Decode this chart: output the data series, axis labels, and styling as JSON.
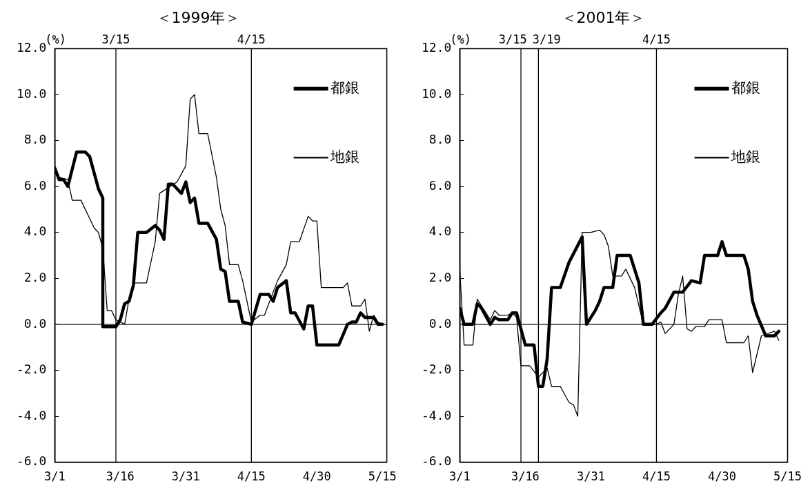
{
  "chart_data": [
    {
      "type": "line",
      "title": "＜1999年＞",
      "ylabel": "(%)",
      "legend": "top right",
      "grid": false,
      "xlim": [
        "--03-01",
        "--05-16"
      ],
      "xticks": [
        {
          "value": "--03-01",
          "label": "3/1"
        },
        {
          "value": "--03-16",
          "label": "3/16"
        },
        {
          "value": "--03-31",
          "label": "3/31"
        },
        {
          "value": "--04-15",
          "label": "4/15"
        },
        {
          "value": "--04-30",
          "label": "4/30"
        },
        {
          "value": "--05-15",
          "label": "5/15"
        }
      ],
      "ylim": [
        -6,
        12
      ],
      "yticks": [
        {
          "value": -6,
          "label": "-6.0"
        },
        {
          "value": -4,
          "label": "-4.0"
        },
        {
          "value": -2,
          "label": "-2.0"
        },
        {
          "value": 0,
          "label": "0.0"
        },
        {
          "value": 2,
          "label": "2.0"
        },
        {
          "value": 4,
          "label": "4.0"
        },
        {
          "value": 6,
          "label": "6.0"
        },
        {
          "value": 8,
          "label": "8.0"
        },
        {
          "value": 10,
          "label": "10.0"
        },
        {
          "value": 12,
          "label": "12.0"
        }
      ],
      "ref_lines": [
        {
          "axis": "x",
          "value": "--03-15",
          "label": "3/15"
        },
        {
          "axis": "x",
          "value": "--04-15",
          "label": "4/15"
        },
        {
          "axis": "y",
          "value": 0,
          "label": null
        }
      ],
      "series": [
        {
          "name": "都銀",
          "color": "#000000",
          "x": [
            "--03-01",
            "--03-02",
            "--03-03",
            "--03-04",
            "--03-06",
            "--03-08",
            "--03-09",
            "--03-10",
            "--03-11",
            "--03-12",
            "--03-12",
            "--03-15",
            "--03-16",
            "--03-17",
            "--03-18",
            "--03-19",
            "--03-20",
            "--03-22",
            "--03-24",
            "--03-25",
            "--03-26",
            "--03-27",
            "--03-28",
            "--03-30",
            "--03-31",
            "--04-01",
            "--04-02",
            "--04-03",
            "--04-05",
            "--04-07",
            "--04-08",
            "--04-09",
            "--04-10",
            "--04-12",
            "--04-13",
            "--04-15",
            "--04-17",
            "--04-19",
            "--04-20",
            "--04-21",
            "--04-23",
            "--04-24",
            "--04-25",
            "--04-27",
            "--04-28",
            "--04-29",
            "--04-30",
            "--05-05",
            "--05-07",
            "--05-08",
            "--05-09",
            "--05-10",
            "--05-11",
            "--05-13",
            "--05-14",
            "--05-15"
          ],
          "values": [
            6.8,
            6.3,
            6.3,
            6.0,
            7.5,
            7.5,
            7.3,
            6.6,
            5.9,
            5.5,
            -0.1,
            -0.1,
            0.2,
            0.9,
            1.0,
            1.7,
            4.0,
            4.0,
            4.3,
            4.1,
            3.7,
            6.1,
            6.1,
            5.7,
            6.2,
            5.3,
            5.5,
            4.4,
            4.4,
            3.7,
            2.4,
            2.3,
            1.0,
            1.0,
            0.1,
            0.0,
            1.3,
            1.3,
            1.0,
            1.6,
            1.9,
            0.5,
            0.5,
            -0.2,
            0.8,
            0.8,
            -0.9,
            -0.9,
            0.0,
            0.1,
            0.1,
            0.5,
            0.3,
            0.3,
            0.0,
            0.0
          ]
        },
        {
          "name": "地銀",
          "color": "#000000",
          "x": [
            "--03-01",
            "--03-02",
            "--03-04",
            "--03-05",
            "--03-07",
            "--03-10",
            "--03-11",
            "--03-12",
            "--03-13",
            "--03-14",
            "--03-15",
            "--03-17",
            "--03-18",
            "--03-19",
            "--03-22",
            "--03-24",
            "--03-25",
            "--03-29",
            "--03-31",
            "--04-01",
            "--04-02",
            "--04-03",
            "--04-05",
            "--04-07",
            "--04-08",
            "--04-09",
            "--04-10",
            "--04-12",
            "--04-13",
            "--04-15",
            "--04-17",
            "--04-18",
            "--04-21",
            "--04-23",
            "--04-24",
            "--04-26",
            "--04-28",
            "--04-29",
            "--04-30",
            "--05-01",
            "--05-06",
            "--05-07",
            "--05-08",
            "--05-10",
            "--05-11",
            "--05-12",
            "--05-13",
            "--05-14",
            "--05-15"
          ],
          "values": [
            6.9,
            6.4,
            6.3,
            5.4,
            5.4,
            4.2,
            4.0,
            3.3,
            0.6,
            0.6,
            0.2,
            0.0,
            1.1,
            1.8,
            1.8,
            3.6,
            5.7,
            6.2,
            6.9,
            9.8,
            10.0,
            8.3,
            8.3,
            6.4,
            5.0,
            4.3,
            2.6,
            2.6,
            1.9,
            0.1,
            0.4,
            0.4,
            1.9,
            2.6,
            3.6,
            3.6,
            4.7,
            4.5,
            4.5,
            1.6,
            1.6,
            1.8,
            0.8,
            0.8,
            1.1,
            -0.3,
            0.4,
            0.1,
            0.0
          ]
        }
      ]
    },
    {
      "type": "line",
      "title": "＜2001年＞",
      "ylabel": "(%)",
      "legend": "top right",
      "grid": false,
      "xlim": [
        "--03-01",
        "--05-15"
      ],
      "xticks": [
        {
          "value": "--03-01",
          "label": "3/1"
        },
        {
          "value": "--03-16",
          "label": "3/16"
        },
        {
          "value": "--03-31",
          "label": "3/31"
        },
        {
          "value": "--04-15",
          "label": "4/15"
        },
        {
          "value": "--04-30",
          "label": "4/30"
        },
        {
          "value": "--05-15",
          "label": "5/15"
        }
      ],
      "ylim": [
        -6,
        12
      ],
      "yticks": [
        {
          "value": -6,
          "label": "-6.0"
        },
        {
          "value": -4,
          "label": "-4.0"
        },
        {
          "value": -2,
          "label": "-2.0"
        },
        {
          "value": 0,
          "label": "0.0"
        },
        {
          "value": 2,
          "label": "2.0"
        },
        {
          "value": 4,
          "label": "4.0"
        },
        {
          "value": 6,
          "label": "6.0"
        },
        {
          "value": 8,
          "label": "8.0"
        },
        {
          "value": 10,
          "label": "10.0"
        },
        {
          "value": 12,
          "label": "12.0"
        }
      ],
      "ref_lines": [
        {
          "axis": "x",
          "value": "--03-15",
          "label": "3/15"
        },
        {
          "axis": "x",
          "value": "--03-19",
          "label": "3/19"
        },
        {
          "axis": "x",
          "value": "--04-15",
          "label": "4/15"
        },
        {
          "axis": "y",
          "value": 0,
          "label": null
        }
      ],
      "series": [
        {
          "name": "都銀",
          "color": "#000000",
          "x": [
            "--03-01",
            "--03-02",
            "--03-04",
            "--03-05",
            "--03-06",
            "--03-08",
            "--03-09",
            "--03-10",
            "--03-12",
            "--03-13",
            "--03-14",
            "--03-16",
            "--03-18",
            "--03-19",
            "--03-20",
            "--03-21",
            "--03-22",
            "--03-24",
            "--03-26",
            "--03-29",
            "--03-30",
            "--04-01",
            "--04-02",
            "--04-03",
            "--04-05",
            "--04-06",
            "--04-09",
            "--04-11",
            "--04-12",
            "--04-14",
            "--04-16",
            "--04-17",
            "--04-19",
            "--04-21",
            "--04-23",
            "--04-25",
            "--04-26",
            "--04-29",
            "--04-30",
            "--05-01",
            "--05-05",
            "--05-06",
            "--05-07",
            "--05-08",
            "--05-10",
            "--05-12",
            "--05-13"
          ],
          "values": [
            0.7,
            0.0,
            0.0,
            0.9,
            0.7,
            0.0,
            0.3,
            0.2,
            0.2,
            0.5,
            0.5,
            -0.9,
            -0.9,
            -2.7,
            -2.7,
            -1.5,
            1.6,
            1.6,
            2.7,
            3.8,
            0.0,
            0.6,
            1.0,
            1.6,
            1.6,
            3.0,
            3.0,
            1.8,
            0.0,
            0.0,
            0.5,
            0.7,
            1.4,
            1.4,
            1.9,
            1.8,
            3.0,
            3.0,
            3.6,
            3.0,
            3.0,
            2.4,
            1.0,
            0.4,
            -0.5,
            -0.5,
            -0.3
          ]
        },
        {
          "name": "地銀",
          "color": "#000000",
          "x": [
            "--03-01",
            "--03-02",
            "--03-04",
            "--03-05",
            "--03-06",
            "--03-08",
            "--03-09",
            "--03-10",
            "--03-12",
            "--03-13",
            "--03-14",
            "--03-15",
            "--03-17",
            "--03-19",
            "--03-21",
            "--03-22",
            "--03-24",
            "--03-26",
            "--03-27",
            "--03-28",
            "--03-29",
            "--03-31",
            "--04-02",
            "--04-03",
            "--04-04",
            "--04-05",
            "--04-07",
            "--04-08",
            "--04-10",
            "--04-12",
            "--04-15",
            "--04-16",
            "--04-17",
            "--04-19",
            "--04-20",
            "--04-21",
            "--04-22",
            "--04-23",
            "--04-24",
            "--04-26",
            "--04-27",
            "--04-30",
            "--05-01",
            "--05-05",
            "--05-06",
            "--05-07",
            "--05-08",
            "--05-09",
            "--05-12",
            "--05-13"
          ],
          "values": [
            2.4,
            -0.9,
            -0.9,
            1.1,
            0.8,
            0.2,
            0.6,
            0.4,
            0.4,
            0.5,
            0.3,
            -1.8,
            -1.8,
            -2.3,
            -1.9,
            -2.7,
            -2.7,
            -3.4,
            -3.5,
            -4.0,
            4.0,
            4.0,
            4.1,
            3.9,
            3.4,
            2.1,
            2.1,
            2.4,
            1.6,
            0.0,
            0.0,
            0.1,
            -0.4,
            0.0,
            1.3,
            2.1,
            -0.2,
            -0.3,
            -0.1,
            -0.1,
            0.2,
            0.2,
            -0.8,
            -0.8,
            -0.5,
            -2.1,
            -1.3,
            -0.5,
            -0.3,
            -0.7
          ]
        }
      ]
    }
  ]
}
